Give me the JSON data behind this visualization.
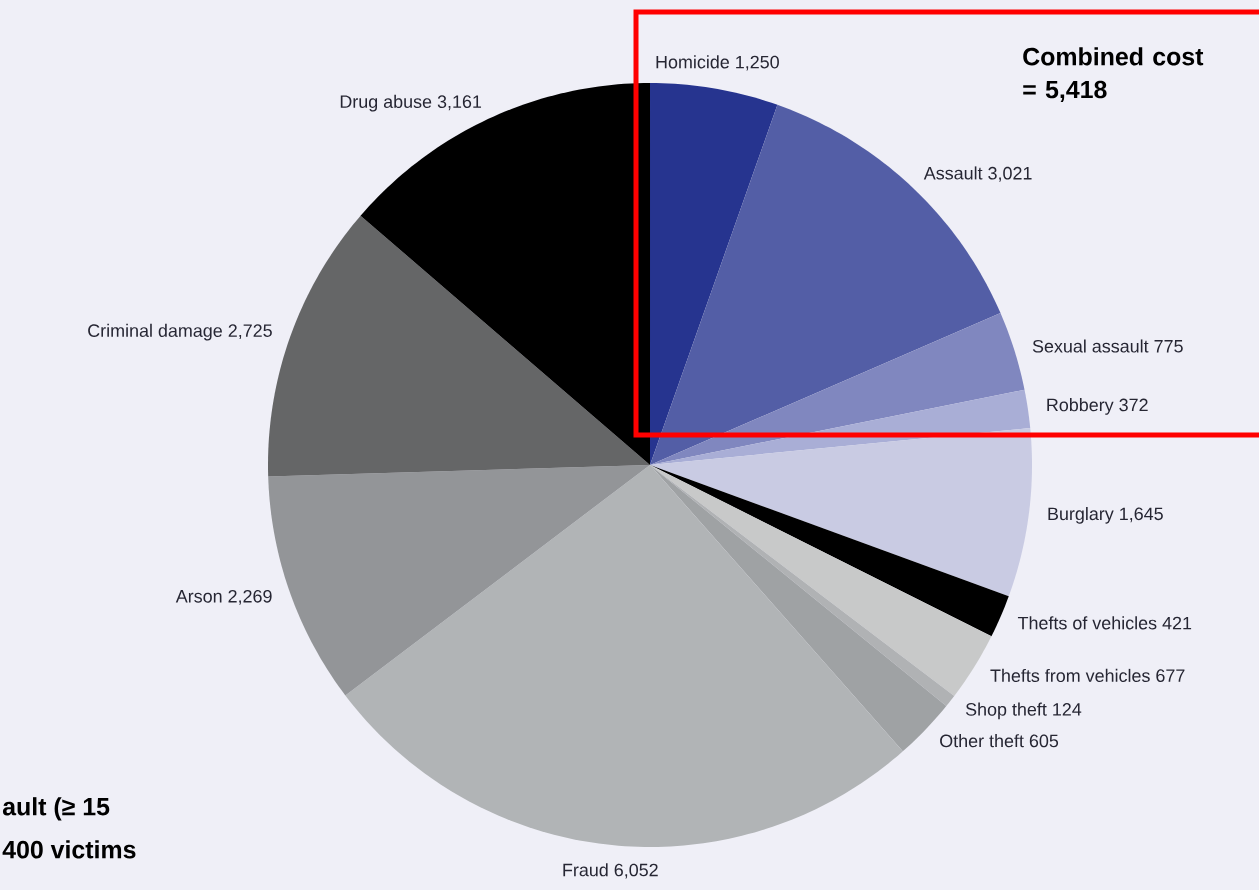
{
  "chart_data": {
    "type": "pie",
    "categories": [
      "Homicide",
      "Assault",
      "Sexual assault",
      "Robbery",
      "Burglary",
      "Thefts of vehicles",
      "Thefts from vehicles",
      "Shop theft",
      "Other theft",
      "Fraud",
      "Arson",
      "Criminal damage",
      "Drug abuse"
    ],
    "values": [
      1250,
      3021,
      775,
      372,
      1645,
      421,
      677,
      124,
      605,
      6052,
      2269,
      2725,
      3161
    ],
    "value_labels": [
      "1,250",
      "3,021",
      "775",
      "372",
      "1,645",
      "421",
      "677",
      "124",
      "605",
      "6,052",
      "2,269",
      "2,725",
      "3,161"
    ],
    "colors": [
      "#26348f",
      "#535ea6",
      "#8087bf",
      "#a9aed6",
      "#c9cbe3",
      "#000000",
      "#c8c9c9",
      "#b0b2b4",
      "#9fa2a4",
      "#b1b4b6",
      "#939598",
      "#656667",
      "#000000"
    ],
    "annotations": [
      "Combined cost = 5,418",
      "ault (≥ 15",
      "400 victims"
    ]
  }
}
